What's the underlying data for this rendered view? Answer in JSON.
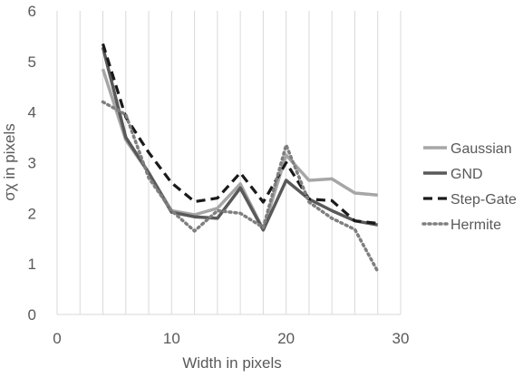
{
  "chart_data": {
    "type": "line",
    "title": "",
    "xlabel": "Width in pixels",
    "ylabel": "σχ in pixels",
    "xlim": [
      0,
      30
    ],
    "ylim": [
      0,
      6
    ],
    "x_ticks": [
      0,
      10,
      20,
      30
    ],
    "y_ticks": [
      0,
      1,
      2,
      3,
      4,
      5,
      6
    ],
    "x_grid": true,
    "y_grid": false,
    "legend_position": "right",
    "x": [
      4,
      6,
      8,
      10,
      12,
      14,
      16,
      18,
      20,
      22,
      24,
      26,
      28
    ],
    "series": [
      {
        "name": "Gaussian",
        "color": "#a6a6a6",
        "dash": "solid",
        "values": [
          4.85,
          3.45,
          2.8,
          2.05,
          1.97,
          2.1,
          2.58,
          1.68,
          3.15,
          2.65,
          2.68,
          2.4,
          2.36
        ]
      },
      {
        "name": "GND",
        "color": "#595959",
        "dash": "solid",
        "values": [
          5.28,
          3.5,
          2.8,
          2.02,
          1.93,
          1.9,
          2.5,
          1.67,
          2.65,
          2.28,
          2.05,
          1.85,
          1.77
        ]
      },
      {
        "name": "Step-Gate",
        "color": "#1a1a1a",
        "dash": "dashed",
        "values": [
          5.35,
          3.9,
          3.2,
          2.6,
          2.23,
          2.3,
          2.8,
          2.22,
          3.0,
          2.28,
          2.25,
          1.85,
          1.8
        ]
      },
      {
        "name": "Hermite",
        "color": "#7f7f7f",
        "dash": "dotted",
        "values": [
          4.2,
          3.95,
          2.7,
          2.05,
          1.65,
          2.05,
          2.0,
          1.72,
          3.35,
          2.22,
          1.9,
          1.68,
          0.85
        ]
      }
    ]
  }
}
